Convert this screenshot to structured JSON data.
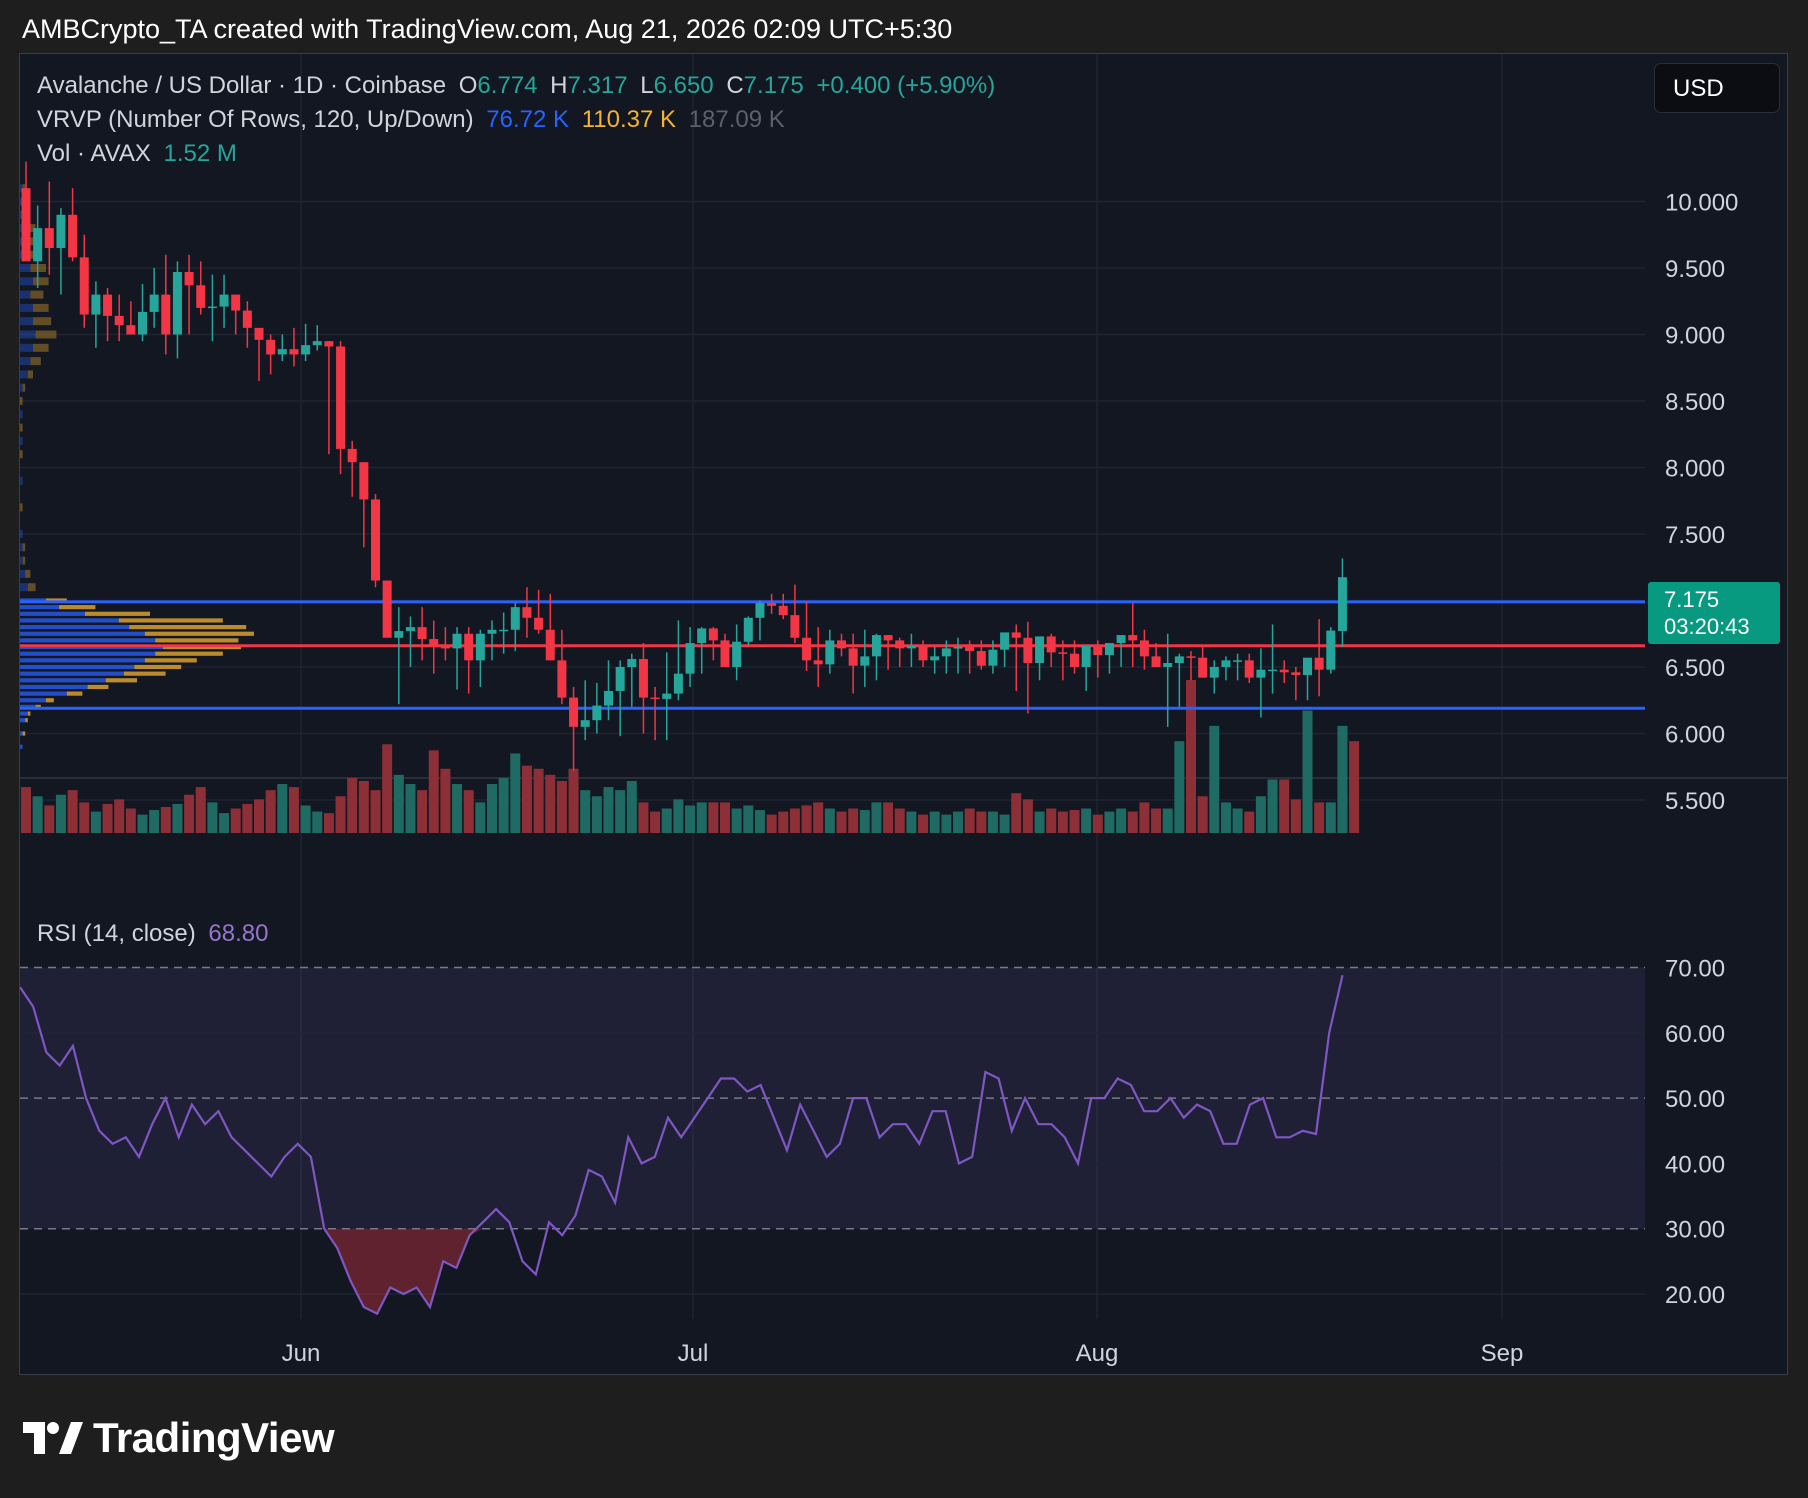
{
  "header": {
    "created_text": "AMBCrypto_TA created with TradingView.com, Aug 21, 2026 02:09 UTC+5:30"
  },
  "legend": {
    "symbol": "Avalanche / US Dollar · 1D · Coinbase",
    "o_label": "O",
    "o_value": "6.774",
    "h_label": "H",
    "h_value": "7.317",
    "l_label": "L",
    "l_value": "6.650",
    "c_label": "C",
    "c_value": "7.175",
    "change": "+0.400 (+5.90%)",
    "vrvp_label": "VRVP (Number Of Rows, 120, Up/Down)",
    "vrvp_up": "76.72 K",
    "vrvp_down": "110.37 K",
    "vrvp_total": "187.09 K",
    "vol_label": "Vol · AVAX",
    "vol_value": "1.52 M",
    "rsi_label": "RSI (14, close)",
    "rsi_value": "68.80"
  },
  "currency_button": "USD",
  "price_tag": {
    "price": "7.175",
    "countdown": "03:20:43"
  },
  "footer": {
    "brand": "TradingView"
  },
  "colors": {
    "bull": "#26a69a",
    "bear": "#f23645",
    "bull_volume": "#1f6b64",
    "bear_volume": "#8c2f36",
    "support_line": "#2962ff",
    "poc_line": "#f23645",
    "rsi_line": "#7e57c2",
    "vp_up": "#2962ff",
    "vp_down": "#f5b32f"
  },
  "chart_data": {
    "type": "candlestick",
    "price_axis": {
      "min": 5.2,
      "max": 10.0,
      "ticks": [
        "10.000",
        "9.500",
        "9.000",
        "8.500",
        "8.000",
        "7.500",
        "7.000",
        "6.500",
        "6.000",
        "5.500"
      ]
    },
    "time_axis": {
      "labels": [
        "Jun",
        "Jul",
        "Aug",
        "Sep"
      ]
    },
    "horizontal_levels": {
      "resistance": 6.99,
      "poc": 6.66,
      "support": 6.19
    },
    "candles": {
      "open": [
        10.1,
        9.55,
        9.8,
        9.65,
        9.9,
        9.58,
        9.15,
        9.3,
        9.14,
        9.07,
        9.0,
        9.17,
        9.3,
        9.0,
        9.47,
        9.37,
        9.2,
        9.21,
        9.3,
        9.18,
        9.05,
        8.96,
        8.85,
        8.89,
        8.85,
        8.92,
        8.95,
        8.91,
        8.14,
        8.04,
        7.76,
        7.15,
        6.72,
        6.77,
        6.8,
        6.71,
        6.66,
        6.64,
        6.75,
        6.55,
        6.75,
        6.78,
        6.78,
        6.95,
        6.87,
        6.78,
        6.55,
        6.27,
        6.05,
        6.1,
        6.21,
        6.32,
        6.5,
        6.56,
        6.27,
        6.26,
        6.3,
        6.45,
        6.68,
        6.79,
        6.7,
        6.5,
        6.69,
        6.87,
        6.98,
        6.96,
        6.89,
        6.72,
        6.55,
        6.52,
        6.7,
        6.64,
        6.51,
        6.58,
        6.74,
        6.7,
        6.64,
        6.66,
        6.55,
        6.58,
        6.64,
        6.65,
        6.62,
        6.51,
        6.63,
        6.76,
        6.72,
        6.53,
        6.73,
        6.61,
        6.6,
        6.5,
        6.66,
        6.59,
        6.68,
        6.74,
        6.7,
        6.58,
        6.5,
        6.53,
        6.58,
        6.57,
        6.42,
        6.5,
        6.55,
        6.55,
        6.42,
        6.48,
        6.48,
        6.46,
        6.44,
        6.57,
        6.48,
        6.77
      ],
      "high": [
        10.3,
        9.97,
        10.15,
        9.95,
        10.1,
        9.75,
        9.4,
        9.35,
        9.3,
        9.25,
        9.38,
        9.5,
        9.6,
        9.55,
        9.6,
        9.55,
        9.45,
        9.45,
        9.3,
        9.25,
        9.0,
        9.0,
        9.0,
        9.05,
        9.08,
        9.07,
        8.95,
        8.95,
        8.2,
        8.04,
        7.8,
        7.15,
        6.95,
        6.88,
        6.95,
        6.85,
        6.8,
        6.8,
        6.8,
        6.78,
        6.85,
        6.91,
        6.98,
        7.1,
        7.08,
        7.05,
        6.78,
        6.35,
        6.4,
        6.38,
        6.55,
        6.55,
        6.6,
        6.68,
        6.35,
        6.61,
        6.85,
        6.8,
        6.8,
        6.8,
        6.75,
        6.82,
        6.88,
        7.0,
        7.05,
        7.05,
        7.12,
        6.99,
        6.8,
        6.78,
        6.75,
        6.75,
        6.78,
        6.75,
        6.74,
        6.72,
        6.75,
        6.7,
        6.65,
        6.7,
        6.72,
        6.7,
        6.7,
        6.7,
        6.68,
        6.82,
        6.84,
        6.68,
        6.75,
        6.7,
        6.7,
        6.65,
        6.7,
        6.67,
        6.72,
        6.98,
        6.78,
        6.68,
        6.75,
        6.6,
        6.62,
        6.65,
        6.55,
        6.58,
        6.6,
        6.6,
        6.64,
        6.82,
        6.55,
        6.5,
        6.55,
        6.86,
        6.8,
        7.317
      ],
      "low": [
        9.8,
        9.35,
        9.45,
        9.3,
        9.55,
        9.05,
        8.9,
        8.95,
        8.95,
        9.0,
        8.95,
        9.05,
        8.85,
        8.82,
        9.0,
        9.15,
        8.95,
        9.05,
        9.0,
        8.9,
        8.65,
        8.7,
        8.8,
        8.76,
        8.8,
        8.88,
        8.1,
        7.95,
        7.78,
        7.4,
        7.1,
        6.8,
        6.22,
        6.5,
        6.55,
        6.45,
        6.55,
        6.33,
        6.3,
        6.35,
        6.55,
        6.6,
        6.62,
        6.72,
        6.75,
        6.55,
        6.22,
        5.72,
        5.95,
        6.0,
        6.1,
        5.98,
        6.2,
        6.0,
        5.95,
        5.95,
        6.25,
        6.35,
        6.45,
        6.55,
        6.5,
        6.4,
        6.66,
        6.7,
        6.9,
        6.86,
        6.68,
        6.47,
        6.35,
        6.45,
        6.58,
        6.3,
        6.35,
        6.4,
        6.48,
        6.5,
        6.5,
        6.5,
        6.45,
        6.45,
        6.45,
        6.45,
        6.48,
        6.45,
        6.5,
        6.32,
        6.15,
        6.4,
        6.5,
        6.4,
        6.45,
        6.32,
        6.42,
        6.45,
        6.5,
        6.5,
        6.48,
        6.5,
        6.05,
        6.2,
        6.4,
        6.42,
        6.3,
        6.4,
        6.4,
        6.38,
        6.12,
        6.3,
        6.38,
        6.25,
        6.25,
        6.28,
        6.45,
        6.65
      ],
      "close": [
        9.55,
        9.8,
        9.65,
        9.9,
        9.58,
        9.15,
        9.3,
        9.14,
        9.07,
        9.0,
        9.17,
        9.3,
        9.0,
        9.47,
        9.37,
        9.2,
        9.21,
        9.3,
        9.18,
        9.05,
        8.96,
        8.85,
        8.89,
        8.85,
        8.92,
        8.95,
        8.91,
        8.14,
        8.04,
        7.76,
        7.15,
        6.72,
        6.77,
        6.8,
        6.71,
        6.66,
        6.64,
        6.75,
        6.55,
        6.75,
        6.78,
        6.78,
        6.95,
        6.87,
        6.78,
        6.55,
        6.27,
        6.05,
        6.1,
        6.21,
        6.32,
        6.5,
        6.56,
        6.27,
        6.26,
        6.3,
        6.45,
        6.68,
        6.79,
        6.7,
        6.5,
        6.69,
        6.87,
        6.98,
        6.96,
        6.89,
        6.72,
        6.55,
        6.52,
        6.7,
        6.64,
        6.51,
        6.58,
        6.74,
        6.7,
        6.64,
        6.66,
        6.55,
        6.58,
        6.64,
        6.65,
        6.62,
        6.51,
        6.63,
        6.76,
        6.72,
        6.53,
        6.73,
        6.61,
        6.6,
        6.5,
        6.66,
        6.59,
        6.68,
        6.74,
        6.7,
        6.58,
        6.5,
        6.53,
        6.58,
        6.57,
        6.42,
        6.5,
        6.55,
        6.55,
        6.42,
        6.48,
        6.48,
        6.46,
        6.44,
        6.57,
        6.48,
        6.774,
        7.175
      ]
    },
    "volume_relative": [
      0.3,
      0.24,
      0.18,
      0.25,
      0.28,
      0.2,
      0.14,
      0.19,
      0.22,
      0.16,
      0.12,
      0.15,
      0.17,
      0.19,
      0.25,
      0.3,
      0.2,
      0.13,
      0.16,
      0.19,
      0.22,
      0.28,
      0.32,
      0.3,
      0.18,
      0.14,
      0.13,
      0.24,
      0.36,
      0.34,
      0.28,
      0.58,
      0.38,
      0.32,
      0.28,
      0.54,
      0.42,
      0.32,
      0.28,
      0.2,
      0.32,
      0.36,
      0.52,
      0.44,
      0.42,
      0.38,
      0.34,
      0.42,
      0.28,
      0.24,
      0.3,
      0.28,
      0.34,
      0.2,
      0.14,
      0.16,
      0.22,
      0.18,
      0.2,
      0.2,
      0.2,
      0.16,
      0.18,
      0.15,
      0.12,
      0.14,
      0.16,
      0.18,
      0.2,
      0.16,
      0.14,
      0.16,
      0.15,
      0.2,
      0.2,
      0.16,
      0.14,
      0.12,
      0.14,
      0.12,
      0.14,
      0.16,
      0.14,
      0.14,
      0.12,
      0.26,
      0.22,
      0.14,
      0.16,
      0.14,
      0.15,
      0.16,
      0.12,
      0.14,
      0.16,
      0.14,
      0.2,
      0.16,
      0.16,
      0.6,
      1.0,
      0.24,
      0.7,
      0.2,
      0.16,
      0.14,
      0.24,
      0.35,
      0.35,
      0.22,
      0.8,
      0.2,
      0.2,
      0.7,
      0.6
    ],
    "volume_profile": {
      "price_levels": [
        10.1,
        10.0,
        9.9,
        9.8,
        9.7,
        9.6,
        9.5,
        9.4,
        9.3,
        9.2,
        9.1,
        9.0,
        8.9,
        8.8,
        8.7,
        8.6,
        8.5,
        8.4,
        8.3,
        8.2,
        8.1,
        8.0,
        7.9,
        7.8,
        7.7,
        7.6,
        7.5,
        7.4,
        7.3,
        7.2,
        7.1,
        7.0,
        6.95,
        6.9,
        6.85,
        6.8,
        6.75,
        6.7,
        6.65,
        6.6,
        6.55,
        6.5,
        6.45,
        6.4,
        6.35,
        6.3,
        6.25,
        6.2,
        6.15,
        6.1,
        6.0,
        5.9,
        5.8,
        5.7
      ],
      "up": [
        0.01,
        0.02,
        0.02,
        0.03,
        0.04,
        0.03,
        0.04,
        0.05,
        0.04,
        0.05,
        0.05,
        0.06,
        0.05,
        0.04,
        0.03,
        0.01,
        0.0,
        0.01,
        0.0,
        0.01,
        0.0,
        0.0,
        0.01,
        0.0,
        0.0,
        0.0,
        0.01,
        0.01,
        0.01,
        0.02,
        0.03,
        0.1,
        0.15,
        0.25,
        0.38,
        0.42,
        0.48,
        0.52,
        0.55,
        0.52,
        0.48,
        0.44,
        0.4,
        0.33,
        0.26,
        0.18,
        0.1,
        0.06,
        0.03,
        0.02,
        0.01,
        0.01,
        0.0,
        0.0
      ],
      "down": [
        0.01,
        0.01,
        0.02,
        0.03,
        0.04,
        0.05,
        0.06,
        0.06,
        0.05,
        0.06,
        0.07,
        0.08,
        0.06,
        0.04,
        0.02,
        0.01,
        0.01,
        0.0,
        0.01,
        0.0,
        0.01,
        0.0,
        0.0,
        0.0,
        0.01,
        0.0,
        0.0,
        0.01,
        0.01,
        0.02,
        0.03,
        0.08,
        0.14,
        0.25,
        0.4,
        0.45,
        0.42,
        0.32,
        0.3,
        0.26,
        0.2,
        0.18,
        0.16,
        0.12,
        0.08,
        0.06,
        0.03,
        0.02,
        0.01,
        0.01,
        0.01,
        0.0,
        0.0,
        0.0
      ]
    },
    "rsi": {
      "axis_ticks": [
        "70.00",
        "60.00",
        "50.00",
        "40.00",
        "30.00",
        "20.00"
      ],
      "min": 14,
      "max": 73,
      "overbought": 70,
      "oversold": 30,
      "values": [
        67,
        64,
        57,
        55,
        58,
        50,
        45,
        43,
        44,
        41,
        46,
        50,
        44,
        49,
        46,
        48,
        44,
        42,
        40,
        38,
        41,
        43,
        41,
        30,
        27,
        22,
        18,
        17,
        21,
        20,
        21,
        18,
        25,
        24,
        29,
        31,
        33,
        31,
        25,
        23,
        31,
        29,
        32,
        39,
        38,
        34,
        44,
        40,
        41,
        47,
        44,
        47,
        50,
        53,
        53,
        51,
        52,
        47,
        42,
        49,
        45,
        41,
        43,
        50,
        50,
        44,
        46,
        46,
        43,
        48,
        48,
        40,
        41,
        54,
        53,
        45,
        50,
        46,
        46,
        44,
        40,
        50,
        50,
        53,
        52,
        48,
        48,
        50,
        47,
        49,
        48,
        43,
        43,
        49,
        50,
        44,
        44,
        45,
        44.5,
        60,
        68.8
      ]
    }
  }
}
